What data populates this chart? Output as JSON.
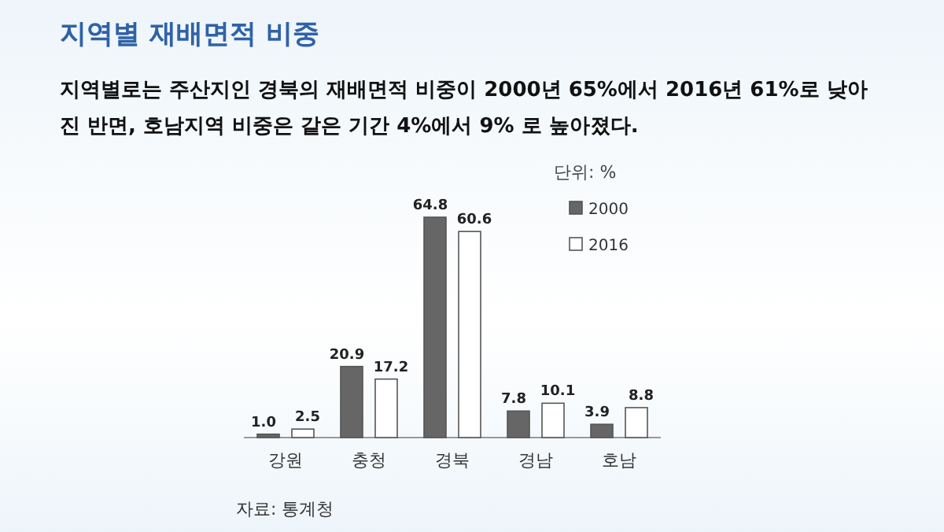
{
  "chart_data": {
    "type": "bar",
    "title": "지역별 재배면적 비중",
    "subtitle": "지역별로는 주산지인 경북의 재배면적 비중이 2000년 65%에서 2016년 61%로 낮아진 반면, 호남지역 비중은 같은 기간 4%에서 9% 로 높아졌다.",
    "categories": [
      "강원",
      "충청",
      "경북",
      "경남",
      "호남"
    ],
    "series": [
      {
        "name": "2000",
        "color": "#666666",
        "values": [
          1.0,
          20.9,
          64.8,
          7.8,
          3.9
        ],
        "value_labels": [
          "1.0",
          "20.9",
          "64.8",
          "7.8",
          "3.9"
        ]
      },
      {
        "name": "2016",
        "color": "#ffffff",
        "values": [
          2.5,
          17.2,
          60.6,
          10.1,
          8.8
        ],
        "value_labels": [
          "2.5",
          "17.2",
          "60.6",
          "10.1",
          "8.8"
        ]
      }
    ],
    "legend": "top right",
    "annotations": [
      "단위: %",
      "자료: 통계청"
    ]
  }
}
